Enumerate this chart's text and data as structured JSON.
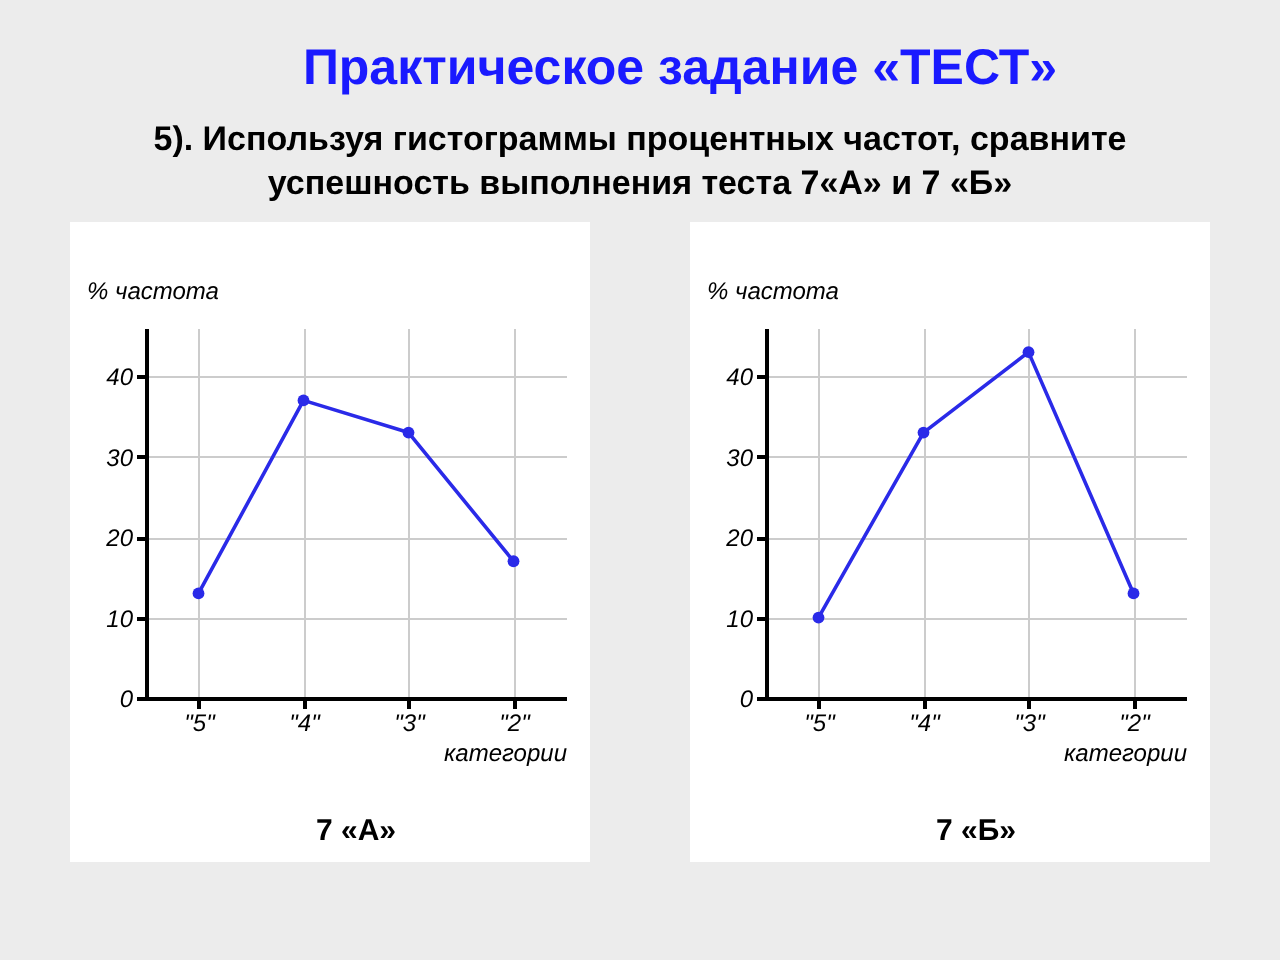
{
  "chart_data": [
    {
      "type": "line",
      "title": "Практическое задание «ТЕСТ»",
      "subtitle": "5). Используя гистограммы процентных частот, сравните успешность выполнения теста 7«А» и 7 «Б»",
      "annotations": [
        "7 «А»"
      ],
      "xlabel": "категории",
      "ylabel": "% частота",
      "categories": [
        "\"5\"",
        "\"4\"",
        "\"3\"",
        "\"2\""
      ],
      "series": [
        {
          "color": "#2a2ae8",
          "values": [
            13,
            37,
            33,
            17
          ]
        }
      ],
      "ylim": [
        0,
        46
      ],
      "yticks": [
        0,
        10,
        20,
        30,
        40
      ],
      "grid": true,
      "marker": "circle"
    },
    {
      "type": "line",
      "annotations": [
        "7 «Б»"
      ],
      "xlabel": "категории",
      "ylabel": "% частота",
      "categories": [
        "\"5\"",
        "\"4\"",
        "\"3\"",
        "\"2\""
      ],
      "series": [
        {
          "color": "#2a2ae8",
          "values": [
            10,
            33,
            43,
            13
          ]
        }
      ],
      "ylim": [
        0,
        46
      ],
      "yticks": [
        0,
        10,
        20,
        30,
        40
      ],
      "grid": true,
      "marker": "circle"
    }
  ]
}
